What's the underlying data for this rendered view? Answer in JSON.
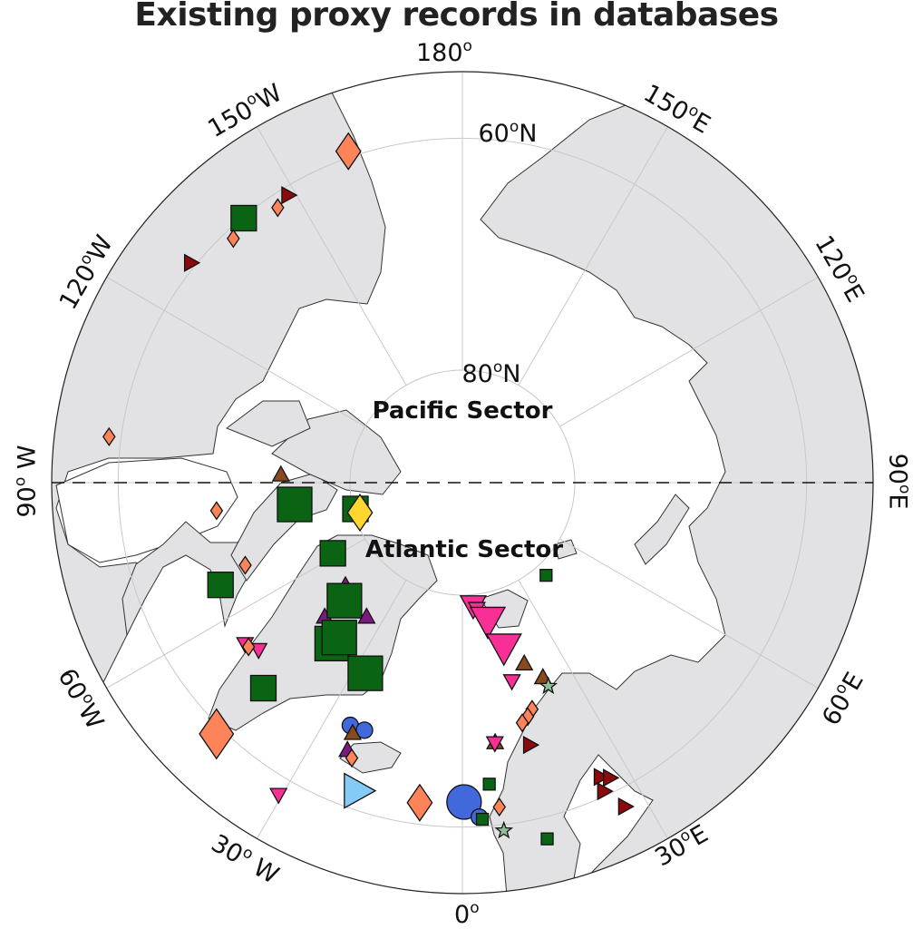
{
  "title": "Existing proxy records in databases",
  "sectors": {
    "pacific": "Pacific Sector",
    "atlantic": "Atlantic Sector"
  },
  "map": {
    "projection": "north polar stereographic",
    "latitude_circles": [
      60,
      80
    ],
    "meridian_step_deg": 30,
    "divider": "dashed line along 90°W–90°E",
    "land_color": "#e2e2e5",
    "ocean_color": "#ffffff"
  },
  "longitude_labels": [
    {
      "value": "180",
      "deg": "o",
      "dir": ""
    },
    {
      "value": "150",
      "deg": "o",
      "dir": "W"
    },
    {
      "value": "120",
      "deg": "o",
      "dir": "W"
    },
    {
      "value": "90",
      "deg": "o",
      "dir": " W"
    },
    {
      "value": "60",
      "deg": "o",
      "dir": "W"
    },
    {
      "value": "30",
      "deg": "o",
      "dir": " W"
    },
    {
      "value": "0",
      "deg": "o",
      "dir": ""
    },
    {
      "value": "30",
      "deg": "o",
      "dir": "E"
    },
    {
      "value": "60",
      "deg": "o",
      "dir": "E"
    },
    {
      "value": "90",
      "deg": "o",
      "dir": "E"
    },
    {
      "value": "120",
      "deg": "o",
      "dir": "E"
    },
    {
      "value": "150",
      "deg": "o",
      "dir": "E"
    }
  ],
  "latitude_labels": [
    {
      "value": "60",
      "deg": "o",
      "dir": "N"
    },
    {
      "value": "80",
      "deg": "o",
      "dir": "N"
    }
  ],
  "colors": {
    "orange": "#fd8458",
    "darkred": "#8b0a0d",
    "green": "#0b6414",
    "brown": "#8a4a1f",
    "purple": "#7d1a82",
    "pink": "#f92f98",
    "blue": "#4169dc",
    "lightblue": "#86cbf7",
    "yellow": "#fdd62f",
    "sage": "#8fc196"
  },
  "markers": [
    {
      "shape": "diamond",
      "color": "orange",
      "size": "L",
      "lon": -161,
      "lat": 59.5
    },
    {
      "shape": "tri-right",
      "color": "darkred",
      "size": "S",
      "lon": -148.8,
      "lat": 60.7
    },
    {
      "shape": "diamond",
      "color": "orange",
      "size": "S",
      "lon": -146.1,
      "lat": 61.1
    },
    {
      "shape": "square",
      "color": "green",
      "size": "M",
      "lon": -140.4,
      "lat": 60.1
    },
    {
      "shape": "diamond",
      "color": "orange",
      "size": "S",
      "lon": -136.8,
      "lat": 60.8
    },
    {
      "shape": "tri-right",
      "color": "darkred",
      "size": "S",
      "lon": -129,
      "lat": 59.6
    },
    {
      "shape": "diamond",
      "color": "orange",
      "size": "S",
      "lon": -97.4,
      "lat": 59.0
    },
    {
      "shape": "tri-up",
      "color": "brown",
      "size": "S",
      "lon": -92.6,
      "lat": 73.9
    },
    {
      "shape": "square",
      "color": "green",
      "size": "L",
      "lon": -82.6,
      "lat": 75.0
    },
    {
      "shape": "diamond",
      "color": "orange",
      "size": "S",
      "lon": -83.5,
      "lat": 68.2
    },
    {
      "shape": "square",
      "color": "green",
      "size": "M",
      "lon": -76.2,
      "lat": 80.2
    },
    {
      "shape": "diamond",
      "color": "yellow",
      "size": "L",
      "lon": -73.7,
      "lat": 80.5
    },
    {
      "shape": "square",
      "color": "green",
      "size": "M",
      "lon": -61.4,
      "lat": 76.9
    },
    {
      "shape": "diamond",
      "color": "orange",
      "size": "S",
      "lon": -69.2,
      "lat": 69.5
    },
    {
      "shape": "square",
      "color": "green",
      "size": "M",
      "lon": -67.1,
      "lat": 66.9
    },
    {
      "shape": "tri-up",
      "color": "purple",
      "size": "S",
      "lon": -48.8,
      "lat": 76.2
    },
    {
      "shape": "tri-up",
      "color": "purple",
      "size": "S",
      "lon": -45.8,
      "lat": 73.0
    },
    {
      "shape": "tri-up",
      "color": "purple",
      "size": "S",
      "lon": -35.6,
      "lat": 75.4
    },
    {
      "shape": "square",
      "color": "green",
      "size": "L",
      "lon": -45,
      "lat": 75.2
    },
    {
      "shape": "square",
      "color": "green",
      "size": "L",
      "lon": -39,
      "lat": 71.7
    },
    {
      "shape": "square",
      "color": "green",
      "size": "L",
      "lon": -38.5,
      "lat": 72.5
    },
    {
      "shape": "square",
      "color": "green",
      "size": "L",
      "lon": -27,
      "lat": 71.1
    },
    {
      "shape": "square",
      "color": "green",
      "size": "M",
      "lon": -44.1,
      "lat": 64.9
    },
    {
      "shape": "tri-down",
      "color": "pink",
      "size": "S",
      "lon": -53.4,
      "lat": 66.2
    },
    {
      "shape": "tri-down",
      "color": "pink",
      "size": "S",
      "lon": -50.6,
      "lat": 66.8
    },
    {
      "shape": "diamond",
      "color": "orange",
      "size": "S",
      "lon": -52.5,
      "lat": 66.3
    },
    {
      "shape": "diamond",
      "color": "orange",
      "size": "XL",
      "lon": -44.4,
      "lat": 59.4
    },
    {
      "shape": "circle",
      "color": "blue",
      "size": "S",
      "lon": -24.8,
      "lat": 66.5
    },
    {
      "shape": "circle",
      "color": "blue",
      "size": "S",
      "lon": -21.6,
      "lat": 66.6
    },
    {
      "shape": "tri-up",
      "color": "brown",
      "size": "S",
      "lon": -23.7,
      "lat": 66.0
    },
    {
      "shape": "tri-up",
      "color": "purple",
      "size": "S",
      "lon": -23.3,
      "lat": 64.5
    },
    {
      "shape": "diamond",
      "color": "orange",
      "size": "S",
      "lon": -21.9,
      "lat": 64.0
    },
    {
      "shape": "tri-down",
      "color": "pink",
      "size": "S",
      "lon": -30.5,
      "lat": 58.5
    },
    {
      "shape": "tri-right",
      "color": "lightblue",
      "size": "L",
      "lon": -18.7,
      "lat": 61.6
    },
    {
      "shape": "diamond",
      "color": "orange",
      "size": "L",
      "lon": -7.6,
      "lat": 61.8
    },
    {
      "shape": "circle",
      "color": "blue",
      "size": "L",
      "lon": 0.3,
      "lat": 62.1
    },
    {
      "shape": "circle",
      "color": "blue",
      "size": "S",
      "lon": 2.9,
      "lat": 60.8
    },
    {
      "shape": "square",
      "color": "green",
      "size": "XS",
      "lon": 3.4,
      "lat": 60.6
    },
    {
      "shape": "square",
      "color": "green",
      "size": "XS",
      "lon": 5.1,
      "lat": 63.5
    },
    {
      "shape": "diamond",
      "color": "orange",
      "size": "S",
      "lon": 6.5,
      "lat": 61.5
    },
    {
      "shape": "star",
      "color": "sage",
      "size": "S",
      "lon": 6.8,
      "lat": 59.5
    },
    {
      "shape": "square",
      "color": "green",
      "size": "XS",
      "lon": 13.4,
      "lat": 58.2
    },
    {
      "shape": "tri-down",
      "color": "pink",
      "size": "M",
      "lon": 5.0,
      "lat": 79.0
    },
    {
      "shape": "tri-down",
      "color": "pink",
      "size": "S",
      "lon": 6.5,
      "lat": 78.7
    },
    {
      "shape": "tri-down",
      "color": "pink",
      "size": "L",
      "lon": 10.4,
      "lat": 77.5
    },
    {
      "shape": "tri-down",
      "color": "pink",
      "size": "L",
      "lon": 14.1,
      "lat": 74.9
    },
    {
      "shape": "tri-down",
      "color": "pink",
      "size": "S",
      "lon": 14.0,
      "lat": 71.9
    },
    {
      "shape": "tri-up",
      "color": "brown",
      "size": "S",
      "lon": 18.9,
      "lat": 73.1
    },
    {
      "shape": "tri-up",
      "color": "brown",
      "size": "S",
      "lon": 22.5,
      "lat": 71.4
    },
    {
      "shape": "star",
      "color": "sage",
      "size": "S",
      "lon": 22.9,
      "lat": 70.5
    },
    {
      "shape": "square",
      "color": "green",
      "size": "XS",
      "lon": 42.1,
      "lat": 78.9
    },
    {
      "shape": "diamond",
      "color": "orange",
      "size": "S",
      "lon": 17.1,
      "lat": 69.1
    },
    {
      "shape": "diamond",
      "color": "orange",
      "size": "S",
      "lon": 15.6,
      "lat": 68.6
    },
    {
      "shape": "diamond",
      "color": "orange",
      "size": "S",
      "lon": 14.0,
      "lat": 68.2
    },
    {
      "shape": "tri-up",
      "color": "brown",
      "size": "S",
      "lon": 7.2,
      "lat": 67.0
    },
    {
      "shape": "tri-down",
      "color": "pink",
      "size": "S",
      "lon": 7.1,
      "lat": 66.9
    },
    {
      "shape": "tri-right",
      "color": "darkred",
      "size": "S",
      "lon": 14.5,
      "lat": 66.2
    },
    {
      "shape": "tri-right",
      "color": "darkred",
      "size": "S",
      "lon": 25.2,
      "lat": 61.6
    },
    {
      "shape": "tri-right",
      "color": "darkred",
      "size": "S",
      "lon": 26.6,
      "lat": 61.2
    },
    {
      "shape": "tri-right",
      "color": "darkred",
      "size": "S",
      "lon": 24.7,
      "lat": 60.4
    },
    {
      "shape": "tri-right",
      "color": "darkred",
      "size": "S",
      "lon": 26.7,
      "lat": 58.5
    }
  ]
}
